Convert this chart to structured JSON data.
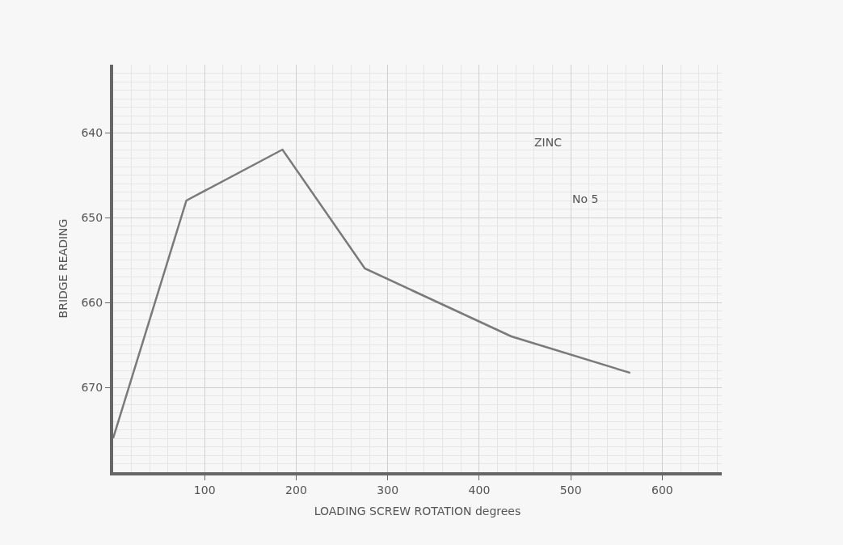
{
  "chart_data": {
    "type": "line",
    "xlabel": "LOADING SCREW ROTATION degrees",
    "ylabel": "BRIDGE READING",
    "x": [
      0,
      80,
      185,
      275,
      435,
      565
    ],
    "series": [
      {
        "color": "#7a7a7a",
        "values": [
          676,
          648,
          642,
          656,
          664,
          668.3
        ]
      }
    ],
    "xlim": [
      0,
      665
    ],
    "ylim": [
      680,
      632
    ],
    "xticks": [
      100,
      200,
      300,
      400,
      500,
      600
    ],
    "yticks": [
      640,
      650,
      660,
      670
    ],
    "annotations": [
      "ZINC",
      "No 5"
    ],
    "grid": true,
    "marker": "none",
    "line_style": "solid"
  }
}
